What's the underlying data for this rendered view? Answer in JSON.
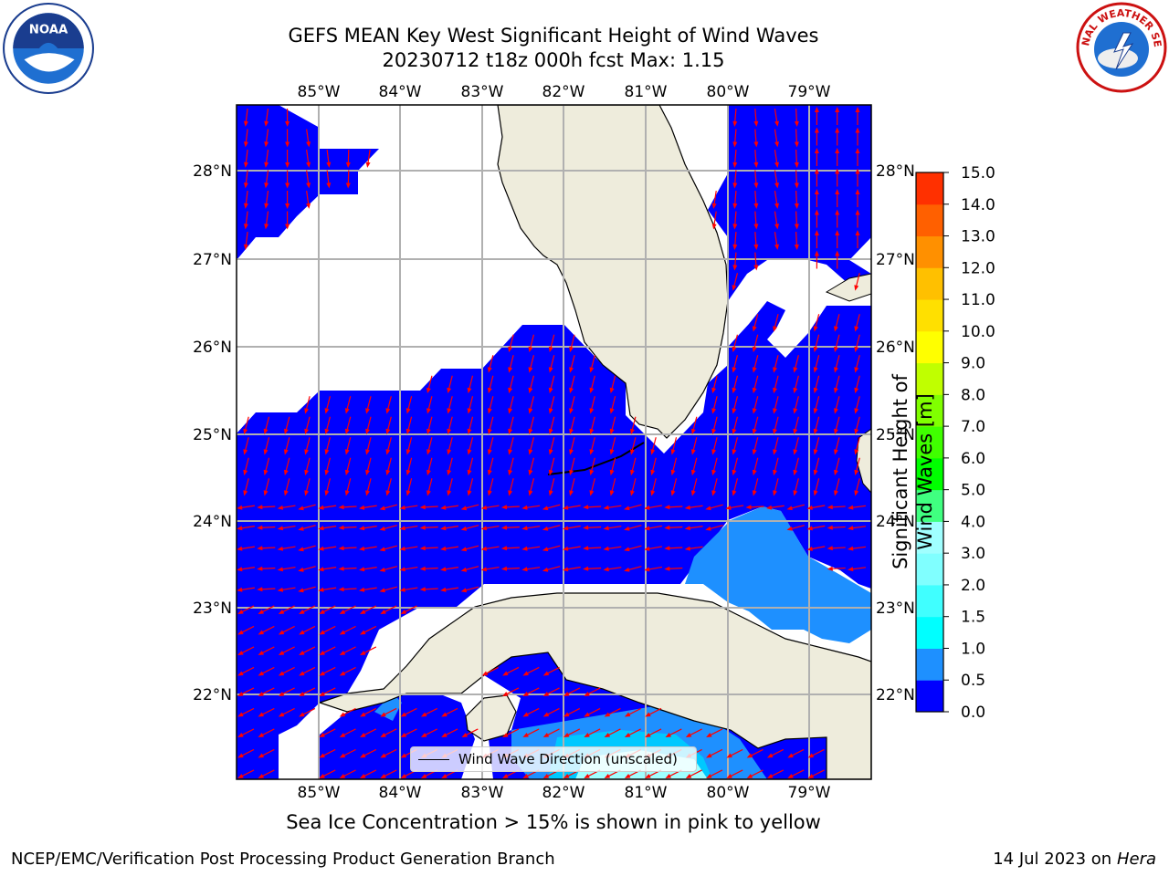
{
  "title": {
    "line1": "GEFS MEAN Key West Significant Height of Wind Waves",
    "line2": "20230712 t18z 000h fcst   Max: 1.15"
  },
  "map": {
    "lon_ticks": [
      "85°W",
      "84°W",
      "83°W",
      "82°W",
      "81°W",
      "80°W",
      "79°W"
    ],
    "lat_ticks": [
      "28°N",
      "27°N",
      "26°N",
      "25°N",
      "24°N",
      "23°N",
      "22°N"
    ],
    "grid": true,
    "ocean_color": "#0000ff",
    "shade_1_color": "#1e90ff",
    "shade_2_color": "#00c8ff",
    "shade_3_color": "#a0ffff",
    "land_color": "#eeecdc",
    "arrow_color": "#ff0000"
  },
  "legend": {
    "label": "Wind Wave Direction (unscaled)",
    "placement": "bottom-center"
  },
  "colorbar": {
    "title": "Significant Height of Wind Waves [m]",
    "ticks": [
      "0.0",
      "0.5",
      "1.0",
      "1.5",
      "2.0",
      "3.0",
      "4.0",
      "5.0",
      "6.0",
      "7.0",
      "8.0",
      "9.0",
      "10.0",
      "11.0",
      "12.0",
      "13.0",
      "14.0",
      "15.0"
    ],
    "colors": [
      "#0000ff",
      "#1e90ff",
      "#00ffff",
      "#40ffff",
      "#80ffff",
      "#a0ffff",
      "#40ff80",
      "#00ff00",
      "#40ff00",
      "#80ff00",
      "#c0ff00",
      "#ffff00",
      "#ffe000",
      "#ffc000",
      "#ff9000",
      "#ff6000",
      "#ff3000"
    ]
  },
  "notes": {
    "ice": "Sea Ice Concentration > 15% is shown in pink to yellow",
    "producer": "NCEP/EMC/Verification Post Processing Product Generation Branch",
    "date": "14 Jul 2023 on",
    "host": "Hera"
  },
  "logos": {
    "noaa": "NOAA",
    "nws": "NATIONAL WEATHER SERVICE"
  }
}
